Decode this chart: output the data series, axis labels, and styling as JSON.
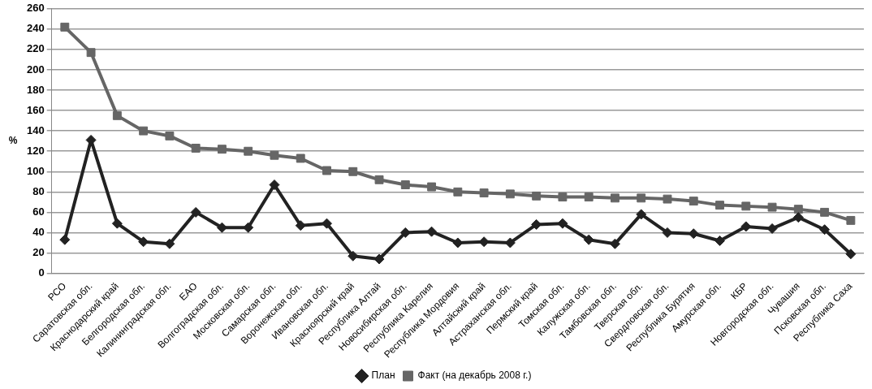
{
  "chart_data": {
    "type": "line",
    "ylabel": "%",
    "categories": [
      "РСО",
      "Саратовская обл.",
      "Краснодарский край",
      "Белгородская обл.",
      "Калининградская обл.",
      "ЕАО",
      "Волгоградская обл.",
      "Московская обл.",
      "Самарская обл.",
      "Воронежская обл.",
      "Ивановская обл.",
      "Красноярский край",
      "Республика Алтай",
      "Новосибирская обл.",
      "Республика Карелия",
      "Республика Мордовия",
      "Алтайский край",
      "Астраханская обл.",
      "Пермский край",
      "Томская обл.",
      "Калужская обл.",
      "Тамбовская обл.",
      "Тверская обл.",
      "Свердловская обл.",
      "Республика Бурятия",
      "Амурская обл.",
      "КБР",
      "Новгородская обл.",
      "Чувашия",
      "Псковская обл.",
      "Республика Саха"
    ],
    "series": [
      {
        "name": "План",
        "color": "#222222",
        "marker": "diamond",
        "values": [
          33,
          131,
          49,
          31,
          29,
          60,
          45,
          45,
          87,
          47,
          49,
          17,
          14,
          40,
          41,
          30,
          31,
          30,
          48,
          49,
          33,
          29,
          58,
          40,
          39,
          32,
          46,
          44,
          55,
          43,
          19
        ]
      },
      {
        "name": "Факт (на декабрь 2008 г.)",
        "color": "#666666",
        "marker": "square",
        "values": [
          242,
          217,
          155,
          140,
          135,
          123,
          122,
          120,
          116,
          113,
          101,
          100,
          92,
          87,
          85,
          80,
          79,
          78,
          76,
          75,
          75,
          74,
          74,
          73,
          71,
          67,
          66,
          65,
          63,
          60,
          52
        ]
      }
    ],
    "ylim": [
      0,
      260
    ],
    "yticks": [
      0,
      20,
      40,
      60,
      80,
      100,
      120,
      140,
      160,
      180,
      200,
      220,
      240,
      260
    ],
    "grid": "y",
    "legend": "bottom",
    "line_style": "solid"
  }
}
